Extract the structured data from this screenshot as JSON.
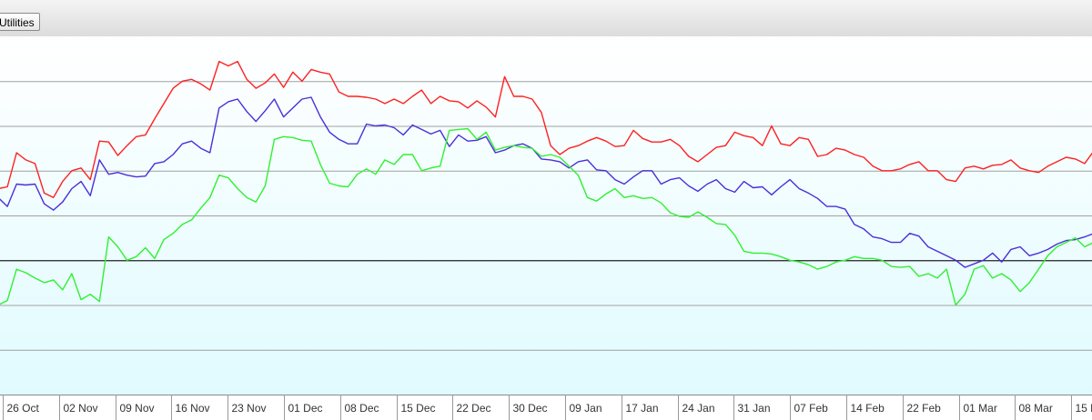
{
  "toolbar": {
    "utilities_label": "Utilities"
  },
  "chart_data": {
    "type": "line",
    "title": "",
    "xlabel": "",
    "ylabel": "",
    "grid": true,
    "x_tick_labels": [
      "26 Oct",
      "02 Nov",
      "09 Nov",
      "16 Nov",
      "23 Nov",
      "01 Dec",
      "08 Dec",
      "15 Dec",
      "22 Dec",
      "30 Dec",
      "09 Jan",
      "17 Jan",
      "24 Jan",
      "31 Jan",
      "07 Feb",
      "14 Feb",
      "22 Feb",
      "01 Mar",
      "08 Mar",
      "15 M"
    ],
    "colors": {
      "red": "#ff2020",
      "blue": "#4a2fd8",
      "green": "#30f030",
      "baseline": "#222222",
      "grid": "#a0a0a0"
    },
    "ylim": [
      0,
      400
    ],
    "baseline_value": 150,
    "series": [
      {
        "color": "red",
        "values": [
          230,
          232,
          270,
          262,
          258,
          225,
          220,
          238,
          250,
          253,
          240,
          283,
          282,
          267,
          278,
          288,
          290,
          308,
          325,
          342,
          350,
          352,
          347,
          340,
          372,
          367,
          372,
          352,
          342,
          348,
          358,
          343,
          360,
          350,
          363,
          360,
          358,
          338,
          333,
          333,
          332,
          330,
          325,
          330,
          325,
          333,
          340,
          325,
          333,
          328,
          327,
          320,
          328,
          321,
          310,
          355,
          333,
          333,
          330,
          315,
          278,
          268,
          275,
          278,
          283,
          287,
          283,
          277,
          278,
          295,
          286,
          282,
          282,
          285,
          278,
          266,
          260,
          268,
          276,
          278,
          293,
          289,
          287,
          278,
          300,
          280,
          278,
          287,
          285,
          266,
          268,
          275,
          273,
          268,
          265,
          255,
          250,
          250,
          252,
          257,
          260,
          250,
          250,
          240,
          238,
          253,
          255,
          252,
          256,
          257,
          262,
          253,
          250,
          248,
          255,
          260,
          265,
          263,
          258,
          272
        ]
      },
      {
        "color": "blue",
        "values": [
          220,
          210,
          235,
          234,
          235,
          213,
          206,
          215,
          230,
          238,
          222,
          262,
          246,
          248,
          245,
          243,
          244,
          258,
          260,
          268,
          280,
          283,
          275,
          270,
          320,
          327,
          330,
          316,
          305,
          317,
          330,
          310,
          320,
          330,
          332,
          310,
          293,
          285,
          280,
          280,
          302,
          300,
          301,
          298,
          290,
          301,
          296,
          291,
          295,
          277,
          290,
          283,
          284,
          288,
          270,
          273,
          278,
          280,
          275,
          263,
          262,
          260,
          253,
          260,
          262,
          251,
          250,
          240,
          235,
          243,
          250,
          250,
          235,
          240,
          242,
          233,
          227,
          235,
          240,
          230,
          226,
          238,
          231,
          232,
          223,
          232,
          240,
          230,
          225,
          219,
          210,
          210,
          207,
          190,
          185,
          176,
          174,
          170,
          170,
          180,
          177,
          165,
          160,
          155,
          150,
          142,
          146,
          150,
          158,
          148,
          162,
          165,
          155,
          158,
          162,
          168,
          172,
          173,
          176,
          180
        ]
      },
      {
        "color": "green",
        "values": [
          100,
          105,
          140,
          136,
          130,
          125,
          128,
          117,
          135,
          106,
          112,
          104,
          176,
          165,
          150,
          154,
          164,
          152,
          173,
          180,
          190,
          195,
          208,
          220,
          245,
          242,
          230,
          220,
          215,
          233,
          285,
          288,
          287,
          284,
          283,
          257,
          236,
          233,
          232,
          246,
          252,
          246,
          262,
          257,
          268,
          268,
          250,
          253,
          255,
          295,
          296,
          297,
          285,
          293,
          273,
          276,
          278,
          276,
          275,
          266,
          268,
          265,
          255,
          245,
          220,
          216,
          224,
          230,
          220,
          222,
          219,
          220,
          214,
          203,
          199,
          198,
          204,
          198,
          191,
          190,
          178,
          160,
          158,
          158,
          157,
          154,
          150,
          148,
          145,
          140,
          143,
          148,
          150,
          154,
          152,
          152,
          150,
          143,
          142,
          143,
          132,
          135,
          130,
          140,
          100,
          112,
          140,
          144,
          130,
          135,
          128,
          115,
          125,
          140,
          155,
          165,
          170,
          175,
          165,
          170
        ]
      }
    ]
  }
}
